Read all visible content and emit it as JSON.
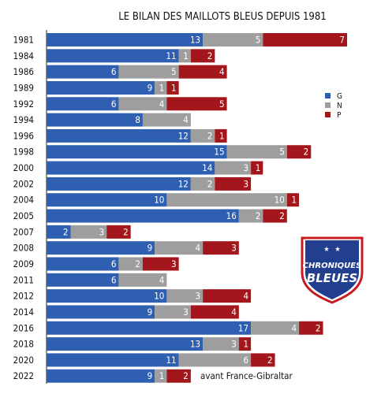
{
  "chart_data": {
    "type": "bar",
    "orientation": "horizontal",
    "stacked": true,
    "title": "LE BILAN DES MAILLOTS BLEUS DEPUIS 1981",
    "categories": [
      "1981",
      "1984",
      "1986",
      "1989",
      "1992",
      "1994",
      "1996",
      "1998",
      "2000",
      "2002",
      "2004",
      "2005",
      "2007",
      "2008",
      "2009",
      "2011",
      "2012",
      "2014",
      "2016",
      "2018",
      "2020",
      "2022"
    ],
    "series": [
      {
        "name": "G",
        "color": "#2f5fb0",
        "values": [
          13,
          11,
          6,
          9,
          6,
          8,
          12,
          15,
          14,
          12,
          10,
          16,
          2,
          9,
          6,
          6,
          10,
          9,
          17,
          13,
          11,
          9
        ]
      },
      {
        "name": "N",
        "color": "#9e9e9e",
        "values": [
          5,
          1,
          5,
          1,
          4,
          4,
          2,
          5,
          3,
          2,
          10,
          2,
          3,
          4,
          2,
          4,
          3,
          3,
          4,
          3,
          6,
          1
        ]
      },
      {
        "name": "P",
        "color": "#a3171c",
        "values": [
          7,
          2,
          4,
          1,
          5,
          0,
          1,
          2,
          1,
          3,
          1,
          2,
          2,
          3,
          3,
          0,
          4,
          4,
          2,
          1,
          2,
          2
        ]
      }
    ],
    "legend_position": "right",
    "grid": false,
    "annotation": "avant France-Gibraltar",
    "logo": {
      "line1": "CHRONIQUES",
      "line2": "BLEUES"
    }
  }
}
